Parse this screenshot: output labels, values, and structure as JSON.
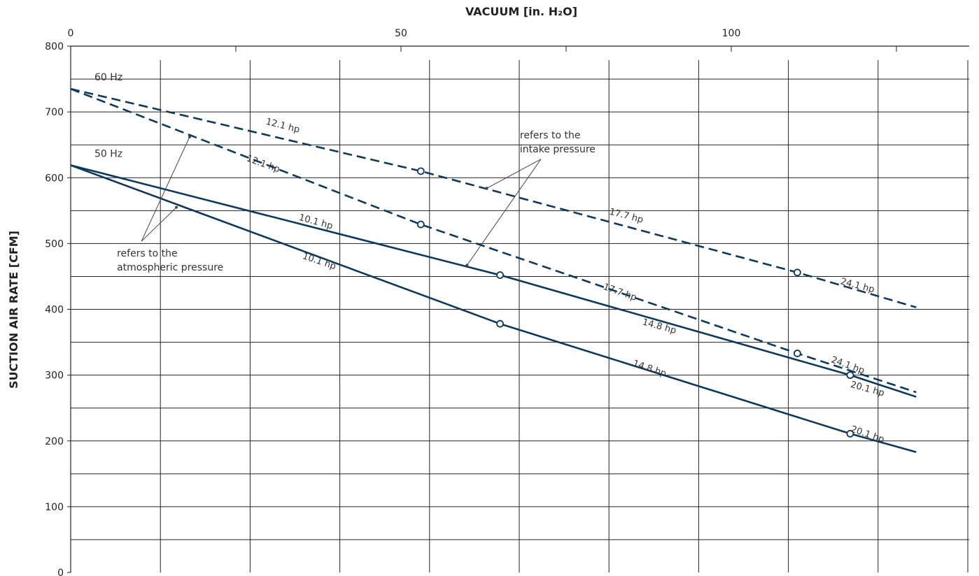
{
  "chart_data": {
    "type": "line",
    "title": "",
    "xlabel": "VACUUM [in. H₂O]",
    "ylabel": "SUCTION AIR RATE [CFM]",
    "xlim": [
      0,
      128
    ],
    "ylim": [
      0,
      800
    ],
    "x_ticks": [
      0,
      50,
      100
    ],
    "x_minor_ticks": [
      25,
      75,
      125
    ],
    "y_ticks": [
      0,
      100,
      200,
      300,
      400,
      500,
      600,
      700,
      800
    ],
    "grid": true,
    "colors": {
      "line": "#0d3a5c",
      "grid": "#222222",
      "text": "#333333"
    },
    "series": [
      {
        "label": "60 Hz",
        "pressure_ref": "intake",
        "style": "dashed",
        "x": [
          0,
          53,
          110,
          128
        ],
        "y": [
          735,
          610,
          456,
          403
        ],
        "markers": [
          [
            53,
            610
          ],
          [
            110,
            456
          ]
        ],
        "hp_labels": [
          {
            "text": "12.1 hp",
            "x": 32,
            "y": 675
          },
          {
            "text": "17.7 hp",
            "x": 84,
            "y": 538
          },
          {
            "text": "24.1 hp",
            "x": 119,
            "y": 432
          }
        ]
      },
      {
        "label": "60 Hz",
        "pressure_ref": "atmospheric",
        "style": "dashed",
        "x": [
          0,
          53,
          110,
          128
        ],
        "y": [
          735,
          529,
          333,
          274
        ],
        "markers": [
          [
            53,
            529
          ],
          [
            110,
            333
          ]
        ],
        "hp_labels": [
          {
            "text": "12.1 hp",
            "x": 29,
            "y": 617
          },
          {
            "text": "17.7 hp",
            "x": 83,
            "y": 422
          },
          {
            "text": "24.1 hp",
            "x": 117.5,
            "y": 311
          }
        ]
      },
      {
        "label": "50 Hz",
        "pressure_ref": "intake",
        "style": "solid",
        "x": [
          0,
          65,
          118,
          128
        ],
        "y": [
          619,
          452,
          300,
          267
        ],
        "markers": [
          [
            65,
            452
          ],
          [
            118,
            300
          ]
        ],
        "hp_labels": [
          {
            "text": "10.1 hp",
            "x": 37,
            "y": 529
          },
          {
            "text": "14.8 hp",
            "x": 89,
            "y": 370
          },
          {
            "text": "20.1 hp",
            "x": 120.5,
            "y": 275
          }
        ]
      },
      {
        "label": "50 Hz",
        "pressure_ref": "atmospheric",
        "style": "solid",
        "x": [
          0,
          65,
          118,
          128
        ],
        "y": [
          619,
          378,
          211,
          183
        ],
        "markers": [
          [
            65,
            378
          ],
          [
            118,
            211
          ]
        ],
        "hp_labels": [
          {
            "text": "10.1 hp",
            "x": 37.5,
            "y": 469
          },
          {
            "text": "14.8 hp",
            "x": 87.5,
            "y": 306
          },
          {
            "text": "20.1 hp",
            "x": 120.5,
            "y": 206
          }
        ]
      }
    ],
    "annotations": [
      {
        "text_lines": [
          "refers to the",
          "intake pressure"
        ],
        "x": 68,
        "y": 660,
        "points_to": [
          [
            63,
            584
          ],
          [
            60,
            467
          ]
        ]
      },
      {
        "text_lines": [
          "refers to the",
          "atmospheric pressure"
        ],
        "x": 7,
        "y": 480,
        "points_to": [
          [
            18,
            662
          ],
          [
            16,
            555
          ]
        ]
      }
    ]
  }
}
